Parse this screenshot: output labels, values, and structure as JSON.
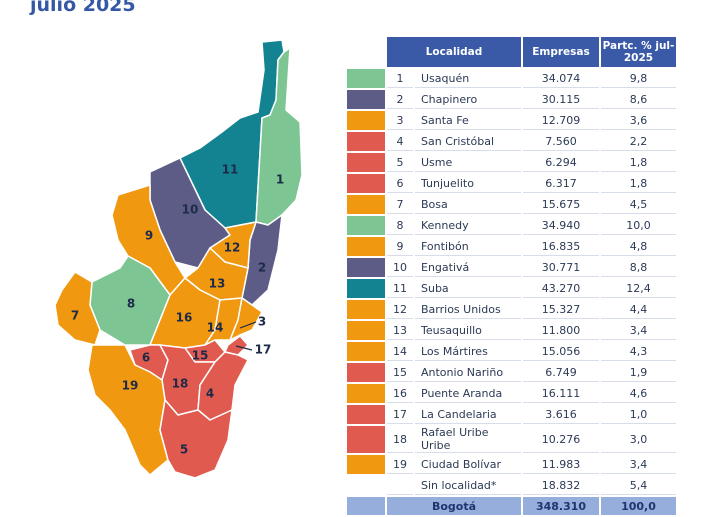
{
  "title": "julio 2025",
  "colors": {
    "green": "#7dc592",
    "purple": "#5c5c87",
    "orange": "#f0980f",
    "red": "#e05a50",
    "teal": "#148391",
    "header": "#3a5aa8",
    "total": "#95aedc"
  },
  "table": {
    "headers": {
      "localidad": "Localidad",
      "empresas": "Empresas",
      "partc": "Partc. % jul-2025"
    },
    "rows": [
      {
        "num": "1",
        "name": "Usaquén",
        "empresas": "34.074",
        "pct": "9,8",
        "color": "#7dc592"
      },
      {
        "num": "2",
        "name": "Chapinero",
        "empresas": "30.115",
        "pct": "8,6",
        "color": "#5c5c87"
      },
      {
        "num": "3",
        "name": "Santa Fe",
        "empresas": "12.709",
        "pct": "3,6",
        "color": "#f0980f"
      },
      {
        "num": "4",
        "name": "San Cristóbal",
        "empresas": "7.560",
        "pct": "2,2",
        "color": "#e05a50"
      },
      {
        "num": "5",
        "name": "Usme",
        "empresas": "6.294",
        "pct": "1,8",
        "color": "#e05a50"
      },
      {
        "num": "6",
        "name": "Tunjuelito",
        "empresas": "6.317",
        "pct": "1,8",
        "color": "#e05a50"
      },
      {
        "num": "7",
        "name": "Bosa",
        "empresas": "15.675",
        "pct": "4,5",
        "color": "#f0980f"
      },
      {
        "num": "8",
        "name": "Kennedy",
        "empresas": "34.940",
        "pct": "10,0",
        "color": "#7dc592"
      },
      {
        "num": "9",
        "name": "Fontibón",
        "empresas": "16.835",
        "pct": "4,8",
        "color": "#f0980f"
      },
      {
        "num": "10",
        "name": "Engativá",
        "empresas": "30.771",
        "pct": "8,8",
        "color": "#5c5c87"
      },
      {
        "num": "11",
        "name": "Suba",
        "empresas": "43.270",
        "pct": "12,4",
        "color": "#148391"
      },
      {
        "num": "12",
        "name": "Barrios Unidos",
        "empresas": "15.327",
        "pct": "4,4",
        "color": "#f0980f"
      },
      {
        "num": "13",
        "name": "Teusaquillo",
        "empresas": "11.800",
        "pct": "3,4",
        "color": "#f0980f"
      },
      {
        "num": "14",
        "name": "Los Mártires",
        "empresas": "15.056",
        "pct": "4,3",
        "color": "#f0980f"
      },
      {
        "num": "15",
        "name": "Antonio Nariño",
        "empresas": "6.749",
        "pct": "1,9",
        "color": "#e05a50"
      },
      {
        "num": "16",
        "name": "Puente Aranda",
        "empresas": "16.111",
        "pct": "4,6",
        "color": "#f0980f"
      },
      {
        "num": "17",
        "name": "La Candelaria",
        "empresas": "3.616",
        "pct": "1,0",
        "color": "#e05a50"
      },
      {
        "num": "18",
        "name": "Rafael Uribe Uribe",
        "empresas": "10.276",
        "pct": "3,0",
        "color": "#e05a50"
      },
      {
        "num": "19",
        "name": "Ciudad Bolívar",
        "empresas": "11.983",
        "pct": "3,4",
        "color": "#f0980f"
      },
      {
        "num": "",
        "name": "Sin localidad*",
        "empresas": "18.832",
        "pct": "5,4",
        "color": ""
      }
    ],
    "total": {
      "name": "Bogotá",
      "empresas": "348.310",
      "pct": "100,0"
    }
  },
  "map": {
    "labels": [
      "1",
      "2",
      "3",
      "4",
      "5",
      "6",
      "7",
      "8",
      "9",
      "10",
      "11",
      "12",
      "13",
      "14",
      "15",
      "16",
      "17",
      "18",
      "19"
    ]
  }
}
